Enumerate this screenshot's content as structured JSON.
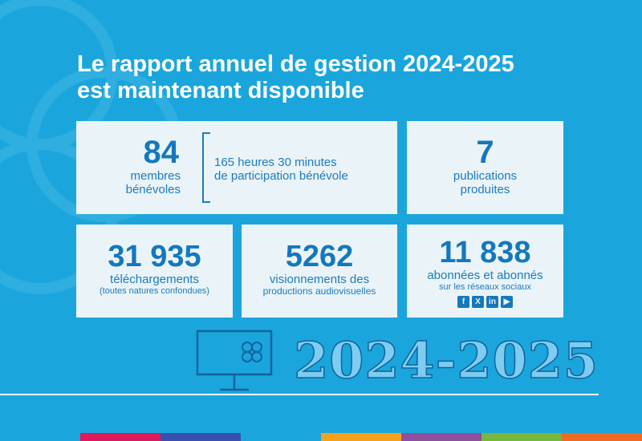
{
  "headline": {
    "line1": "Le rapport annuel de gestion 2024-2025",
    "line2": "est maintenant disponible"
  },
  "stats": {
    "volunteers": {
      "value": "84",
      "label_line1": "membres",
      "label_line2": "bénévoles"
    },
    "hours": {
      "line1": "165 heures 30 minutes",
      "line2": "de participation bénévole"
    },
    "publications": {
      "value": "7",
      "label_line1": "publications",
      "label_line2": "produites"
    },
    "downloads": {
      "value": "31 935",
      "label": "téléchargements",
      "note": "(toutes natures confondues)"
    },
    "views": {
      "value": "5262",
      "label_line1": "visionnements des",
      "label_line2": "productions audiovisuelles"
    },
    "subscribers": {
      "value": "11 838",
      "label": "abonnées et abonnés",
      "note": "sur les réseaux sociaux"
    }
  },
  "social_icons": [
    "facebook-icon",
    "x-icon",
    "linkedin-icon",
    "youtube-icon"
  ],
  "year": "2024-2025",
  "colors": {
    "background": "#1aa6dc",
    "card": "#eaf4f8",
    "accent": "#1478bc",
    "bar": [
      "#1aa6dc",
      "#e0195a",
      "#3b4fb0",
      "#1aa6dc",
      "#f4a21e",
      "#8e4f9e",
      "#79b63e",
      "#f06b22"
    ]
  }
}
